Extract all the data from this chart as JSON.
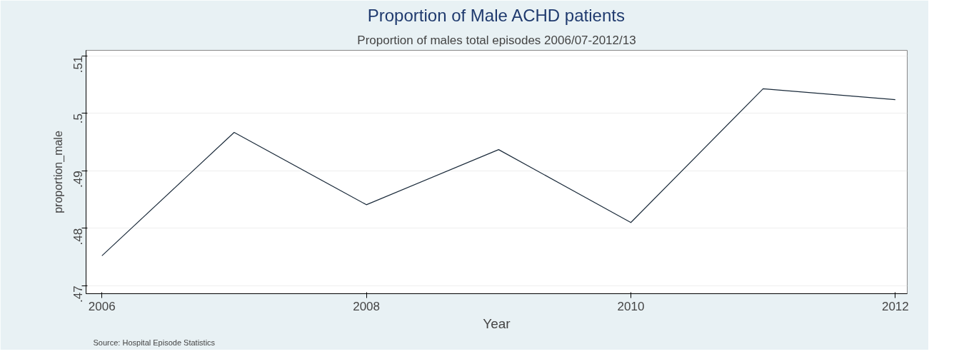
{
  "chart_data": {
    "type": "line",
    "title": "Proportion of Male ACHD patients",
    "subtitle": "Proportion of males total episodes 2006/07-2012/13",
    "xlabel": "Year",
    "ylabel": "proportion_male",
    "x": [
      2006,
      2007,
      2008,
      2009,
      2010,
      2011,
      2012
    ],
    "series": [
      {
        "color": "#1a2a3a",
        "values": [
          0.4752,
          0.4967,
          0.4841,
          0.4937,
          0.481,
          0.5043,
          0.5024
        ]
      }
    ],
    "xlim": [
      2005.88,
      2012.09
    ],
    "xticks": [
      2006,
      2008,
      2010,
      2012
    ],
    "ylim": [
      0.4686,
      0.511
    ],
    "yticks": [
      {
        "value": 0.47,
        "label": ".47"
      },
      {
        "value": 0.48,
        "label": ".48"
      },
      {
        "value": 0.49,
        "label": ".49"
      },
      {
        "value": 0.5,
        "label": ".5"
      },
      {
        "value": 0.51,
        "label": ".51"
      }
    ],
    "grid": "y",
    "marker": "none",
    "line_style": "solid",
    "annotations": [
      "Source: Hospital Episode Statistics"
    ]
  }
}
